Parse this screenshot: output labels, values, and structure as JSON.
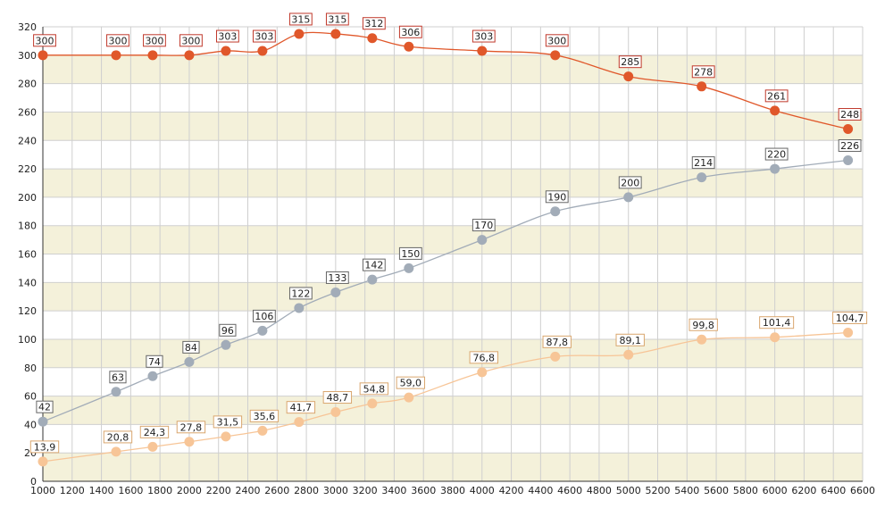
{
  "chart_data": {
    "type": "line",
    "title": "",
    "xlabel": "",
    "ylabel": "",
    "xlim": [
      1000,
      6600
    ],
    "ylim": [
      0,
      320
    ],
    "x_ticks": [
      1000,
      1200,
      1400,
      1600,
      1800,
      2000,
      2200,
      2400,
      2600,
      2800,
      3000,
      3200,
      3400,
      3600,
      3800,
      4000,
      4200,
      4400,
      4600,
      4800,
      5000,
      5200,
      5400,
      5600,
      5800,
      6000,
      6200,
      6400,
      6600
    ],
    "y_ticks": [
      0,
      20,
      40,
      60,
      80,
      100,
      120,
      140,
      160,
      180,
      200,
      220,
      240,
      260,
      280,
      300,
      320
    ],
    "grid": true,
    "band_color": "#f4f1da",
    "grid_color": "#cfcfcf",
    "series": [
      {
        "color": "#e0572a",
        "label_border": "#c0392b",
        "x": [
          1000,
          1500,
          1750,
          2000,
          2250,
          2500,
          2750,
          3000,
          3250,
          3500,
          4000,
          4500,
          5000,
          5500,
          6000,
          6500
        ],
        "values": [
          300,
          300,
          300,
          300,
          303,
          303,
          315,
          315,
          312,
          306,
          303,
          300,
          285,
          278,
          261,
          248
        ],
        "labels": [
          "300",
          "300",
          "300",
          "300",
          "303",
          "303",
          "315",
          "315",
          "312",
          "306",
          "303",
          "300",
          "285",
          "278",
          "261",
          "248"
        ]
      },
      {
        "color": "#a2acb8",
        "label_border": "#666666",
        "x": [
          1000,
          1500,
          1750,
          2000,
          2250,
          2500,
          2750,
          3000,
          3250,
          3500,
          4000,
          4500,
          5000,
          5500,
          6000,
          6500
        ],
        "values": [
          42,
          63,
          74,
          84,
          96,
          106,
          122,
          133,
          142,
          150,
          170,
          190,
          200,
          214,
          220,
          226
        ],
        "labels": [
          "42",
          "63",
          "74",
          "84",
          "96",
          "106",
          "122",
          "133",
          "142",
          "150",
          "170",
          "190",
          "200",
          "214",
          "220",
          "226"
        ]
      },
      {
        "color": "#f7c597",
        "label_border": "#d9a66e",
        "x": [
          1000,
          1500,
          1750,
          2000,
          2250,
          2500,
          2750,
          3000,
          3250,
          3500,
          4000,
          4500,
          5000,
          5500,
          6000,
          6500
        ],
        "values": [
          13.9,
          20.8,
          24.3,
          27.8,
          31.5,
          35.6,
          41.7,
          48.7,
          54.8,
          59.0,
          76.8,
          87.8,
          89.1,
          99.8,
          101.4,
          104.7
        ],
        "labels": [
          "13,9",
          "20,8",
          "24,3",
          "27,8",
          "31,5",
          "35,6",
          "41,7",
          "48,7",
          "54,8",
          "59,0",
          "76,8",
          "87,8",
          "89,1",
          "99,8",
          "101,4",
          "104,7"
        ]
      }
    ]
  }
}
